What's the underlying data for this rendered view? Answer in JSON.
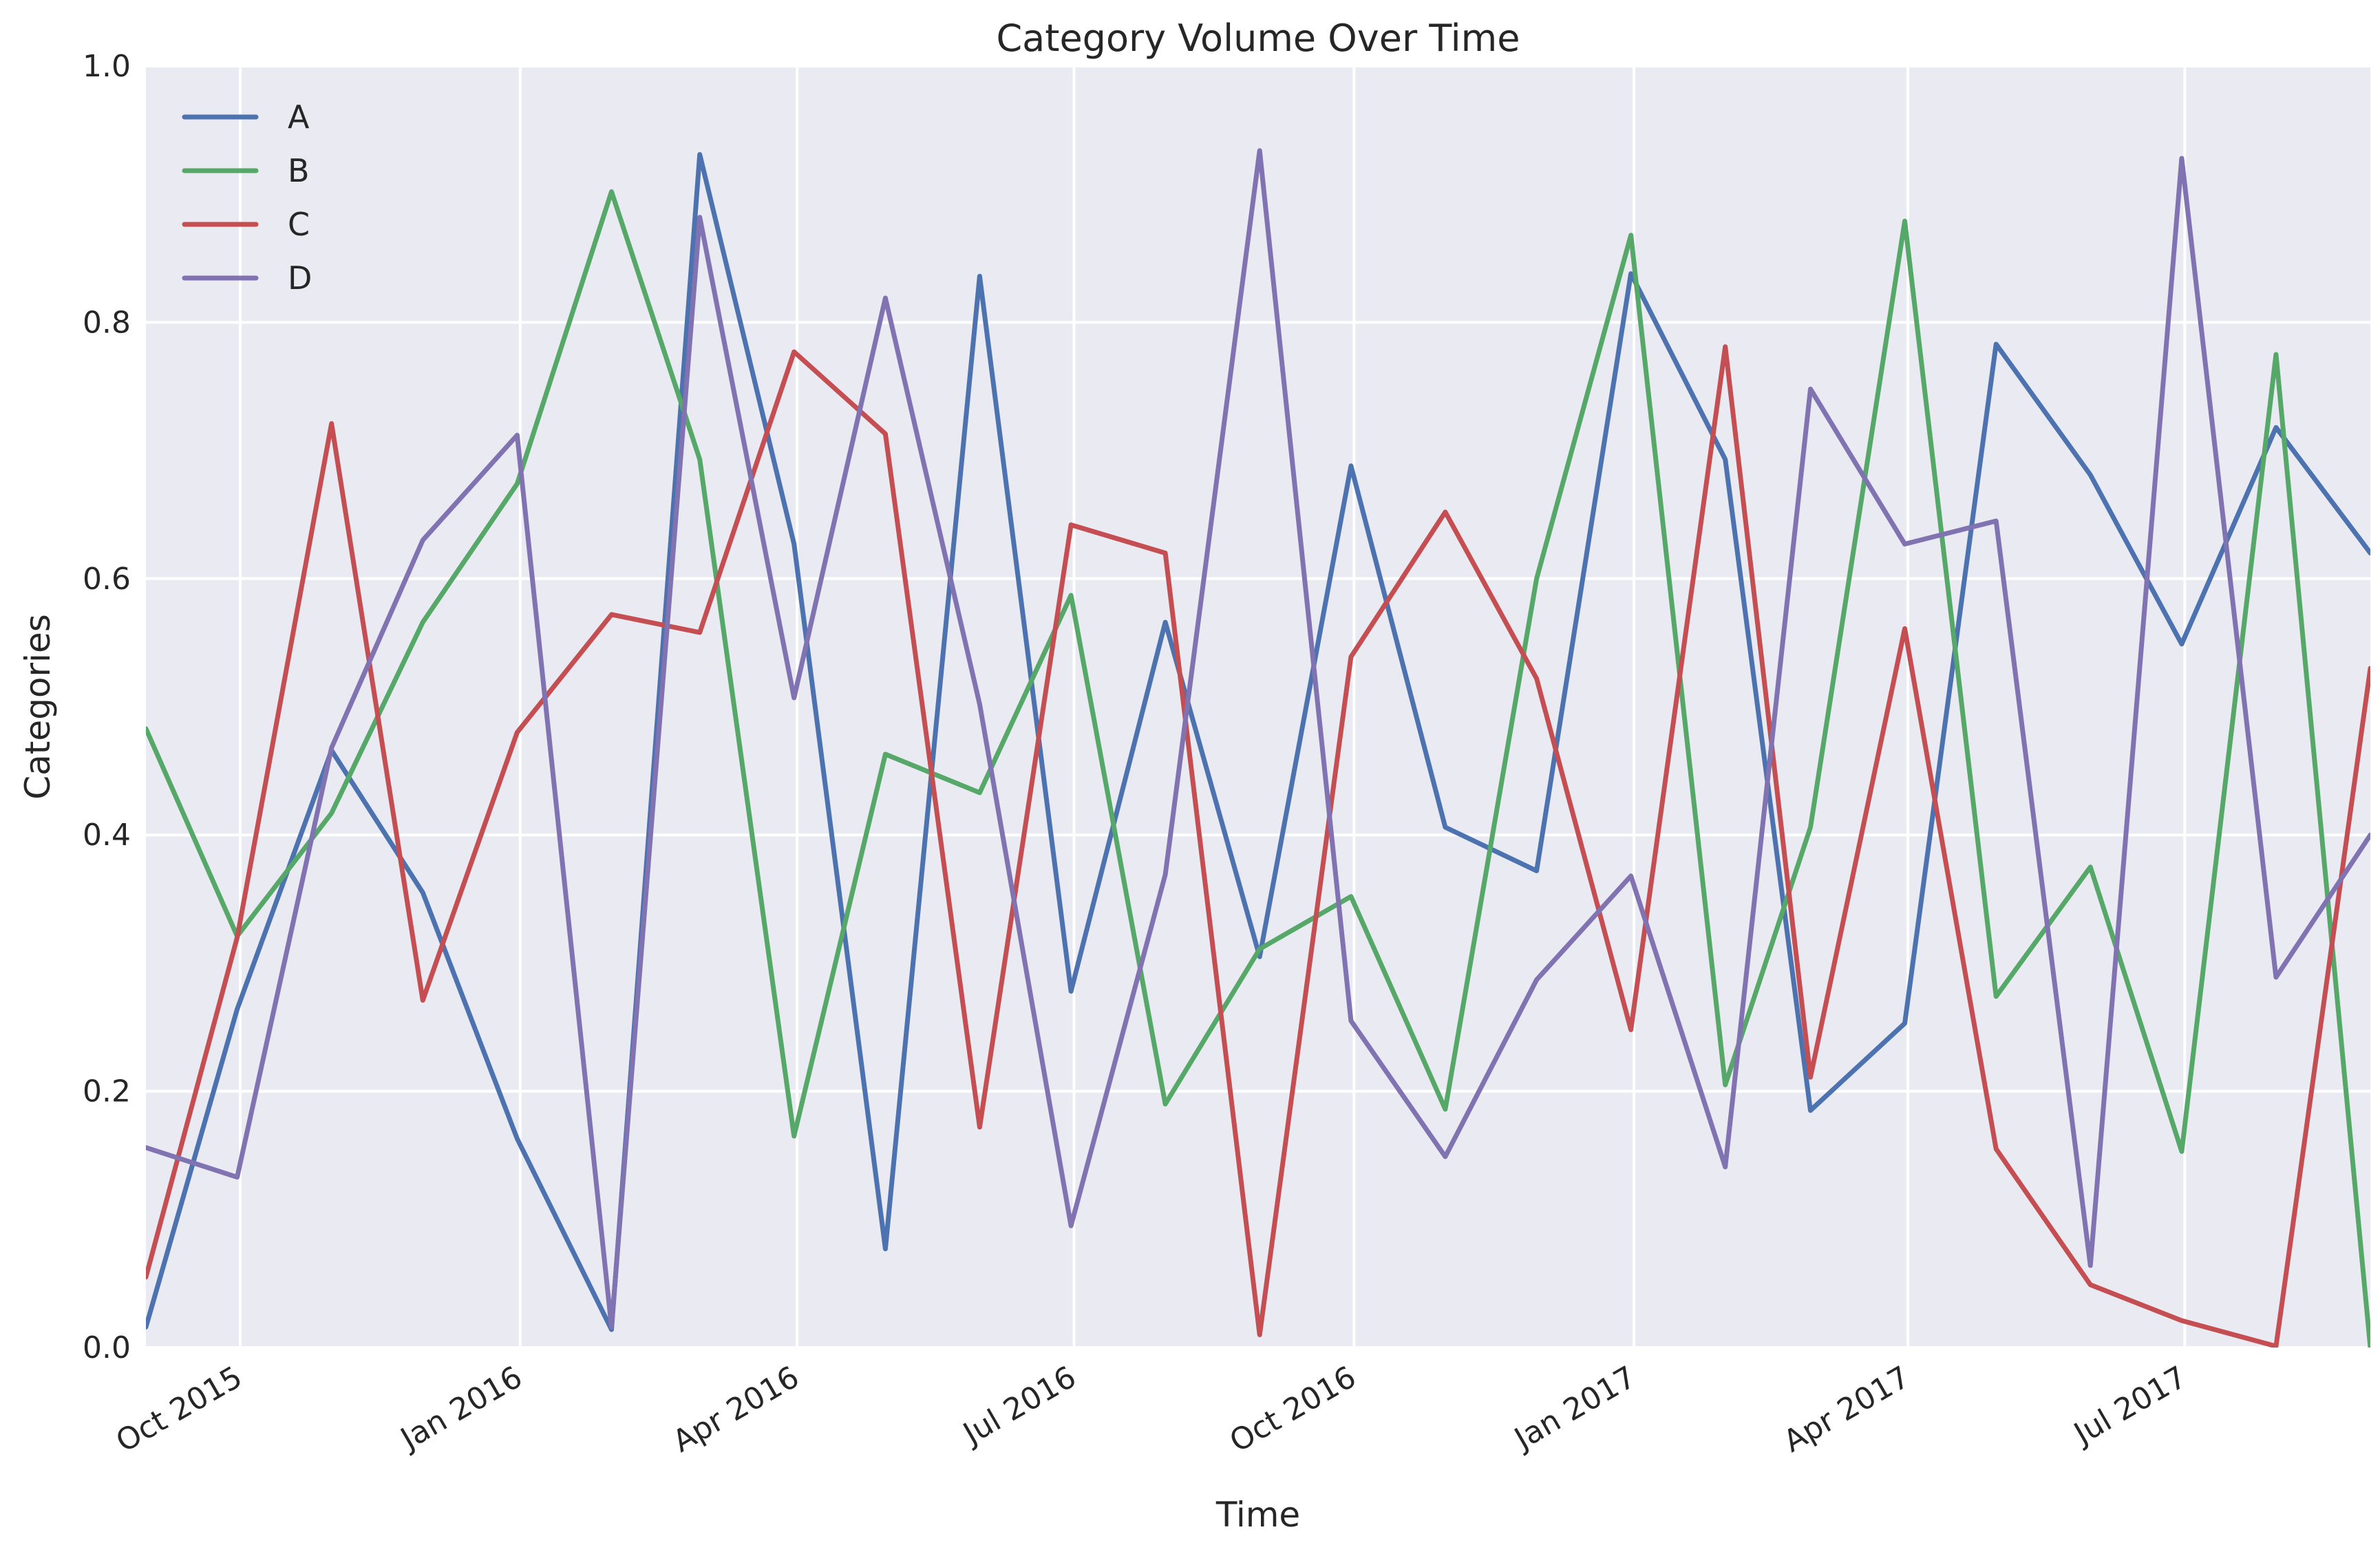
{
  "chart_data": {
    "type": "line",
    "title": "Category Volume Over Time",
    "xlabel": "Time",
    "ylabel": "Categories",
    "xlim": [
      "2015-08-31",
      "2017-08-31"
    ],
    "ylim": [
      0.0,
      1.0
    ],
    "yticks": [
      "0.0",
      "0.2",
      "0.4",
      "0.6",
      "0.8",
      "1.0"
    ],
    "xticks": [
      {
        "date": "2015-10-01",
        "label": "Oct 2015"
      },
      {
        "date": "2016-01-01",
        "label": "Jan 2016"
      },
      {
        "date": "2016-04-01",
        "label": "Apr 2016"
      },
      {
        "date": "2016-07-01",
        "label": "Jul 2016"
      },
      {
        "date": "2016-10-01",
        "label": "Oct 2016"
      },
      {
        "date": "2017-01-01",
        "label": "Jan 2017"
      },
      {
        "date": "2017-04-01",
        "label": "Apr 2017"
      },
      {
        "date": "2017-07-01",
        "label": "Jul 2017"
      }
    ],
    "grid": true,
    "legend_position": "top-left",
    "x": [
      "2015-08-31",
      "2015-09-30",
      "2015-10-31",
      "2015-11-30",
      "2015-12-31",
      "2016-01-31",
      "2016-02-29",
      "2016-03-31",
      "2016-04-30",
      "2016-05-31",
      "2016-06-30",
      "2016-07-31",
      "2016-08-31",
      "2016-09-30",
      "2016-10-31",
      "2016-11-30",
      "2016-12-31",
      "2017-01-31",
      "2017-02-28",
      "2017-03-31",
      "2017-04-30",
      "2017-05-31",
      "2017-06-30",
      "2017-07-31",
      "2017-08-31"
    ],
    "series": [
      {
        "name": "A",
        "color": "#4c72b0",
        "values": [
          0.016,
          0.264,
          0.466,
          0.355,
          0.163,
          0.014,
          0.931,
          0.627,
          0.077,
          0.836,
          0.278,
          0.566,
          0.305,
          0.688,
          0.406,
          0.372,
          0.838,
          0.693,
          0.185,
          0.253,
          0.783,
          0.681,
          0.549,
          0.718,
          0.62
        ]
      },
      {
        "name": "B",
        "color": "#55a868",
        "values": [
          0.483,
          0.321,
          0.417,
          0.566,
          0.674,
          0.902,
          0.693,
          0.165,
          0.463,
          0.433,
          0.587,
          0.19,
          0.311,
          0.352,
          0.186,
          0.6,
          0.868,
          0.205,
          0.406,
          0.879,
          0.274,
          0.375,
          0.153,
          0.775,
          0.0
        ]
      },
      {
        "name": "C",
        "color": "#c44e52",
        "values": [
          0.055,
          0.32,
          0.721,
          0.271,
          0.48,
          0.572,
          0.558,
          0.777,
          0.713,
          0.172,
          0.642,
          0.62,
          0.01,
          0.539,
          0.652,
          0.522,
          0.248,
          0.781,
          0.211,
          0.561,
          0.155,
          0.049,
          0.021,
          0.001,
          0.53
        ]
      },
      {
        "name": "D",
        "color": "#8172b2",
        "values": [
          0.156,
          0.133,
          0.468,
          0.63,
          0.712,
          0.016,
          0.882,
          0.507,
          0.819,
          0.502,
          0.095,
          0.369,
          0.934,
          0.255,
          0.149,
          0.287,
          0.368,
          0.141,
          0.748,
          0.627,
          0.645,
          0.064,
          0.928,
          0.289,
          0.4
        ]
      }
    ]
  }
}
